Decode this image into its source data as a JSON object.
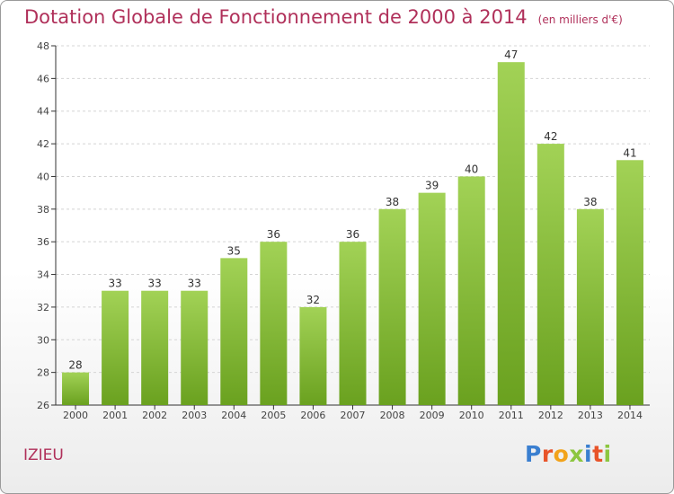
{
  "title": "Dotation Globale de Fonctionnement de 2000 à 2014",
  "subtitle": "(en milliers d'€)",
  "commune": "IZIEU",
  "logo": {
    "text": "Proxiti",
    "letters": [
      {
        "ch": "P",
        "color": "#3a7fd0"
      },
      {
        "ch": "r",
        "color": "#e8542a"
      },
      {
        "ch": "o",
        "color": "#f2a31b"
      },
      {
        "ch": "x",
        "color": "#8cc63f"
      },
      {
        "ch": "i",
        "color": "#3a7fd0"
      },
      {
        "ch": "t",
        "color": "#e8542a"
      },
      {
        "ch": "i",
        "color": "#8cc63f"
      }
    ]
  },
  "colors": {
    "title": "#b0305a",
    "bar_top": "#a2d256",
    "bar_bottom": "#6aa11f",
    "grid": "#d4d4d4",
    "axis": "#333333"
  },
  "chart_data": {
    "type": "bar",
    "categories": [
      "2000",
      "2001",
      "2002",
      "2003",
      "2004",
      "2005",
      "2006",
      "2007",
      "2008",
      "2009",
      "2010",
      "2011",
      "2012",
      "2013",
      "2014"
    ],
    "values": [
      28,
      33,
      33,
      33,
      35,
      36,
      32,
      36,
      38,
      39,
      40,
      47,
      42,
      38,
      41
    ],
    "ylim": [
      26,
      48
    ],
    "yticks": [
      26,
      28,
      30,
      32,
      34,
      36,
      38,
      40,
      42,
      44,
      46,
      48
    ],
    "grid": "horizontal dashed",
    "legend": "none"
  }
}
